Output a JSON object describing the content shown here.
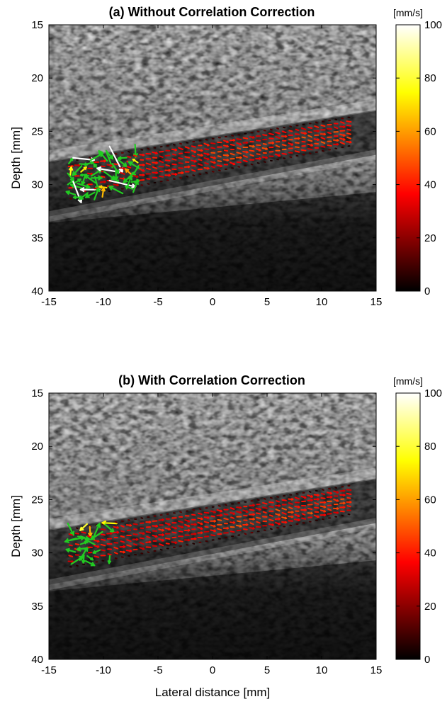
{
  "chart_data": [
    {
      "type": "heatmap",
      "title": "(a) Without Correlation Correction",
      "xlabel": "",
      "ylabel": "Depth [mm]",
      "xlim": [
        -15,
        15
      ],
      "ylim": [
        40,
        15
      ],
      "x_ticks": [
        "-15",
        "-10",
        "-5",
        "0",
        "5",
        "10",
        "15"
      ],
      "y_ticks": [
        "15",
        "20",
        "25",
        "30",
        "35",
        "40"
      ],
      "background": "grayscale B-mode ultrasound image",
      "vessel_wall_depth_mm": {
        "upper_at_x_minus15": 27.2,
        "upper_at_x_15": 22.4,
        "lower_at_x_minus15": 33.0,
        "lower_at_x_15": 27.2
      },
      "vector_field": {
        "x_range_mm": [
          -13.0,
          12.5
        ],
        "columns": 44,
        "rows": 8,
        "dominant_speed_mm_s": 35,
        "noisy_region_x_mm": [
          -13.5,
          -6.5
        ],
        "noisy_region_note": "many green arrows with random directions plus a few long white arrows",
        "noisy_fraction": 0.65
      },
      "colorbar": {
        "unit": "[mm/s]",
        "range": [
          0,
          100
        ],
        "ticks": [
          "0",
          "20",
          "40",
          "60",
          "80",
          "100"
        ],
        "colormap": "hot"
      }
    },
    {
      "type": "heatmap",
      "title": "(b) With Correlation Correction",
      "xlabel": "Lateral distance [mm]",
      "ylabel": "Depth [mm]",
      "xlim": [
        -15,
        15
      ],
      "ylim": [
        40,
        15
      ],
      "x_ticks": [
        "-15",
        "-10",
        "-5",
        "0",
        "5",
        "10",
        "15"
      ],
      "y_ticks": [
        "15",
        "20",
        "25",
        "30",
        "35",
        "40"
      ],
      "background": "grayscale B-mode ultrasound image",
      "vessel_wall_depth_mm": {
        "upper_at_x_minus15": 27.2,
        "upper_at_x_15": 22.4,
        "lower_at_x_minus15": 33.0,
        "lower_at_x_15": 27.2
      },
      "vector_field": {
        "x_range_mm": [
          -13.0,
          12.5
        ],
        "columns": 44,
        "rows": 8,
        "dominant_speed_mm_s": 35,
        "noisy_region_x_mm": [
          -13.5,
          -9.0
        ],
        "noisy_region_note": "fewer green arrows; mostly red/orange/yellow arrows pointing along the vessel",
        "noisy_fraction": 0.35
      },
      "colorbar": {
        "unit": "[mm/s]",
        "range": [
          0,
          100
        ],
        "ticks": [
          "0",
          "20",
          "40",
          "60",
          "80",
          "100"
        ],
        "colormap": "hot"
      }
    }
  ]
}
